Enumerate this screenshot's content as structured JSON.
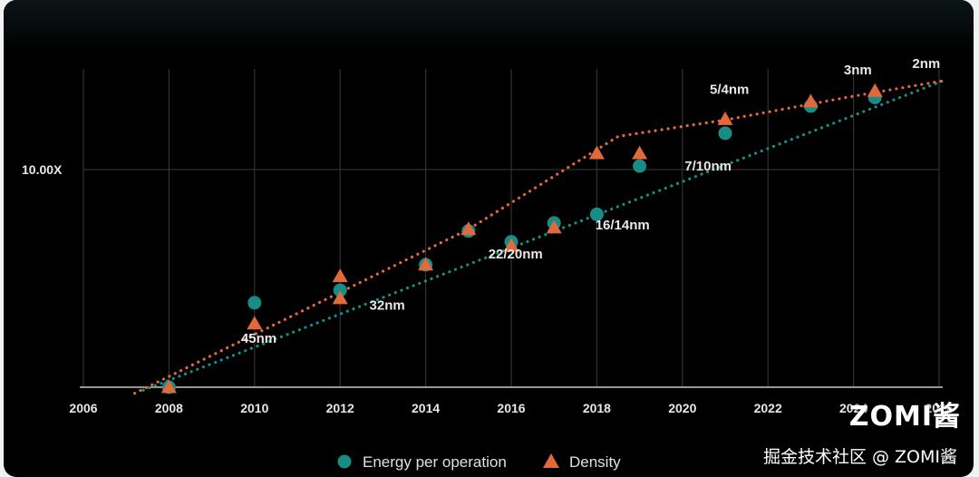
{
  "chart_data": {
    "type": "scatter",
    "title": "",
    "xlabel": "",
    "ylabel": "",
    "x_ticks": [
      "2006",
      "2008",
      "2010",
      "2012",
      "2014",
      "2016",
      "2018",
      "2020",
      "2022",
      "2024",
      "2026"
    ],
    "xlim": [
      2006,
      2026
    ],
    "y_scale": "log",
    "y_tick_label": "10.00X",
    "y_tick_value": 10,
    "ylim": [
      0.5,
      40
    ],
    "grid": true,
    "legend_position": "bottom",
    "series": [
      {
        "name": "Energy per operation",
        "marker": "circle",
        "color": "#1a8c86",
        "points": [
          {
            "x": 2008,
            "y": 0.5
          },
          {
            "x": 2010,
            "y": 1.6
          },
          {
            "x": 2012,
            "y": 1.9
          },
          {
            "x": 2014,
            "y": 2.7
          },
          {
            "x": 2015,
            "y": 4.3
          },
          {
            "x": 2016,
            "y": 3.7
          },
          {
            "x": 2017,
            "y": 4.8
          },
          {
            "x": 2018,
            "y": 5.4
          },
          {
            "x": 2019,
            "y": 10.5
          },
          {
            "x": 2021,
            "y": 16.5
          },
          {
            "x": 2023,
            "y": 24.0
          },
          {
            "x": 2024.5,
            "y": 27.0
          }
        ],
        "trend": [
          {
            "x": 2007.4,
            "y": 0.48
          },
          {
            "x": 2026.1,
            "y": 34.0
          }
        ]
      },
      {
        "name": "Density",
        "marker": "triangle",
        "color": "#e06a3c",
        "points": [
          {
            "x": 2008,
            "y": 0.5
          },
          {
            "x": 2010,
            "y": 1.2
          },
          {
            "x": 2012,
            "y": 1.7
          },
          {
            "x": 2012,
            "y": 2.3
          },
          {
            "x": 2014,
            "y": 2.7
          },
          {
            "x": 2015,
            "y": 4.4
          },
          {
            "x": 2016,
            "y": 3.5
          },
          {
            "x": 2017,
            "y": 4.5
          },
          {
            "x": 2018,
            "y": 12.5
          },
          {
            "x": 2019,
            "y": 12.5
          },
          {
            "x": 2021,
            "y": 20.0
          },
          {
            "x": 2023,
            "y": 25.5
          },
          {
            "x": 2024.5,
            "y": 29.5
          }
        ],
        "trend": [
          {
            "x": 2007.2,
            "y": 0.46
          },
          {
            "x": 2015,
            "y": 4.4
          },
          {
            "x": 2018.5,
            "y": 15.8
          },
          {
            "x": 2021,
            "y": 19.8
          },
          {
            "x": 2024,
            "y": 27.5
          },
          {
            "x": 2026.1,
            "y": 34.0
          }
        ]
      }
    ],
    "annotations": [
      {
        "text": "45nm",
        "x": 2010.1,
        "y": 0.92
      },
      {
        "text": "32nm",
        "x": 2013.1,
        "y": 1.45
      },
      {
        "text": "22/20nm",
        "x": 2016.1,
        "y": 2.95
      },
      {
        "text": "16/14nm",
        "x": 2018.6,
        "y": 4.4
      },
      {
        "text": "7/10nm",
        "x": 2020.6,
        "y": 9.9
      },
      {
        "text": "5/4nm",
        "x": 2021.1,
        "y": 28.3
      },
      {
        "text": "3nm",
        "x": 2024.1,
        "y": 37.0
      },
      {
        "text": "2nm",
        "x": 2025.7,
        "y": 40.5
      }
    ]
  },
  "watermark": {
    "big": "ZOMI酱",
    "small": "掘金技术社区 @ ZOMI酱"
  }
}
